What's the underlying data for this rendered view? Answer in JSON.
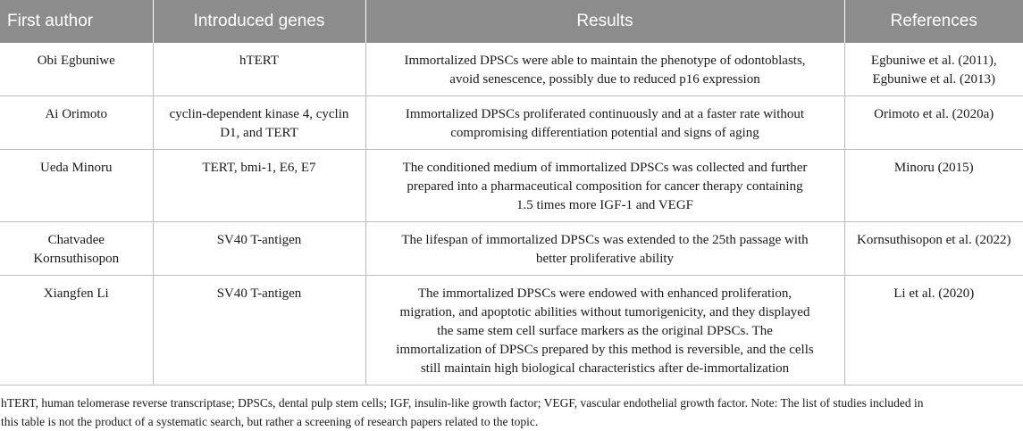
{
  "table": {
    "headers": [
      "First author",
      "Introduced genes",
      "Results",
      "References"
    ],
    "rows": [
      {
        "author": [
          "Obi Egbuniwe"
        ],
        "genes": [
          "hTERT"
        ],
        "results": [
          "Immortalized DPSCs were able to maintain the phenotype of odontoblasts,",
          "avoid senescence, possibly due to reduced p16 expression"
        ],
        "references": [
          "Egbuniwe et al. (2011),",
          "Egbuniwe et al. (2013)"
        ]
      },
      {
        "author": [
          "Ai Orimoto"
        ],
        "genes": [
          "cyclin-dependent kinase 4, cyclin",
          "D1, and TERT"
        ],
        "results": [
          "Immortalized DPSCs proliferated continuously and at a faster rate without",
          "compromising differentiation potential and signs of aging"
        ],
        "references": [
          "Orimoto et al. (2020a)"
        ]
      },
      {
        "author": [
          "Ueda Minoru"
        ],
        "genes": [
          "TERT, bmi-1, E6, E7"
        ],
        "results": [
          "The conditioned medium of immortalized DPSCs was collected and further",
          "prepared into a pharmaceutical composition for cancer therapy containing",
          "1.5 times more IGF-1 and VEGF"
        ],
        "references": [
          "Minoru (2015)"
        ]
      },
      {
        "author": [
          "Chatvadee",
          "Kornsuthisopon"
        ],
        "genes": [
          "SV40 T-antigen"
        ],
        "results": [
          "The lifespan of immortalized DPSCs was extended to the 25th passage with",
          "better proliferative ability"
        ],
        "references": [
          "Kornsuthisopon et al. (2022)"
        ]
      },
      {
        "author": [
          "Xiangfen Li"
        ],
        "genes": [
          "SV40 T-antigen"
        ],
        "results": [
          "The immortalized DPSCs were endowed with enhanced proliferation,",
          "migration, and apoptotic abilities without tumorigenicity, and they displayed",
          "the same stem cell surface markers as the original DPSCs. The",
          "immortalization of DPSCs prepared by this method is reversible, and the cells",
          "still maintain high biological characteristics after de-immortalization"
        ],
        "references": [
          "Li et al. (2020)"
        ]
      }
    ]
  },
  "footnote": [
    "hTERT, human telomerase reverse transcriptase; DPSCs, dental pulp stem cells; IGF, insulin-like growth factor; VEGF, vascular endothelial growth factor. Note: The list of studies included in",
    "this table is not the product of a systematic search, but rather a screening of research papers related to the topic."
  ]
}
